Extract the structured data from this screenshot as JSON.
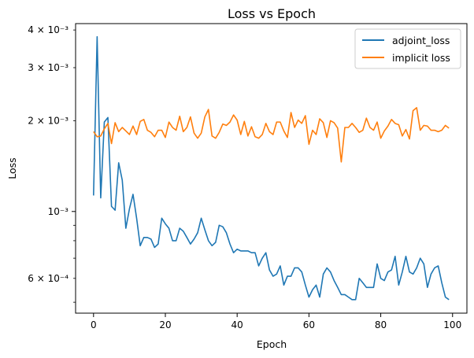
{
  "chart_data": {
    "type": "line",
    "title": "Loss vs Epoch",
    "xlabel": "Epoch",
    "ylabel": "Loss",
    "xlim": [
      -5,
      104
    ],
    "ylim": [
      0.00046,
      0.0042
    ],
    "yscale": "log",
    "grid": false,
    "legend_position": "top-right",
    "x_ticks": [
      0,
      20,
      40,
      60,
      80,
      100
    ],
    "x_tick_labels": [
      "0",
      "20",
      "40",
      "60",
      "80",
      "100"
    ],
    "y_major_ticks": [
      0.001
    ],
    "y_major_labels": [
      "10⁻³"
    ],
    "y_minor_ticks": [
      0.0005,
      0.0006,
      0.0007,
      0.0008,
      0.0009,
      0.002,
      0.003,
      0.004
    ],
    "y_minor_labels": [
      "",
      "6 × 10⁻⁴",
      "",
      "",
      "",
      "2 × 10⁻³",
      "3 × 10⁻³",
      "4 × 10⁻³"
    ],
    "x": [
      0,
      1,
      2,
      3,
      4,
      5,
      6,
      7,
      8,
      9,
      10,
      11,
      12,
      13,
      14,
      15,
      16,
      17,
      18,
      19,
      20,
      21,
      22,
      23,
      24,
      25,
      26,
      27,
      28,
      29,
      30,
      31,
      32,
      33,
      34,
      35,
      36,
      37,
      38,
      39,
      40,
      41,
      42,
      43,
      44,
      45,
      46,
      47,
      48,
      49,
      50,
      51,
      52,
      53,
      54,
      55,
      56,
      57,
      58,
      59,
      60,
      61,
      62,
      63,
      64,
      65,
      66,
      67,
      68,
      69,
      70,
      71,
      72,
      73,
      74,
      75,
      76,
      77,
      78,
      79,
      80,
      81,
      82,
      83,
      84,
      85,
      86,
      87,
      88,
      89,
      90,
      91,
      92,
      93,
      94,
      95,
      96,
      97,
      98,
      99
    ],
    "series": [
      {
        "name": "adjoint_loss",
        "color": "#1f77b4",
        "values": [
          0.00113,
          0.0038,
          0.00111,
          0.00198,
          0.00205,
          0.00104,
          0.00101,
          0.00145,
          0.00127,
          0.00088,
          0.00102,
          0.00114,
          0.00095,
          0.00077,
          0.00082,
          0.00082,
          0.00081,
          0.00076,
          0.00078,
          0.00095,
          0.00091,
          0.00088,
          0.0008,
          0.0008,
          0.00088,
          0.00086,
          0.00082,
          0.00078,
          0.00081,
          0.00085,
          0.00095,
          0.00087,
          0.0008,
          0.00077,
          0.00079,
          0.0009,
          0.00089,
          0.00085,
          0.00078,
          0.00073,
          0.00075,
          0.00074,
          0.00074,
          0.00074,
          0.00073,
          0.00073,
          0.00066,
          0.0007,
          0.00073,
          0.00064,
          0.00061,
          0.00062,
          0.00066,
          0.00057,
          0.00061,
          0.00061,
          0.00065,
          0.00065,
          0.00063,
          0.00057,
          0.00052,
          0.00055,
          0.00057,
          0.00052,
          0.00062,
          0.00065,
          0.00063,
          0.00059,
          0.00056,
          0.00053,
          0.00053,
          0.00052,
          0.00051,
          0.00051,
          0.0006,
          0.00058,
          0.00056,
          0.00056,
          0.00056,
          0.00067,
          0.0006,
          0.00059,
          0.00063,
          0.00064,
          0.00071,
          0.00057,
          0.00063,
          0.00071,
          0.00063,
          0.00062,
          0.00065,
          0.0007,
          0.00067,
          0.00056,
          0.00062,
          0.00065,
          0.00066,
          0.00058,
          0.00052,
          0.00051
        ]
      },
      {
        "name": "implicit loss",
        "color": "#ff7f0e",
        "values": [
          0.00184,
          0.00177,
          0.00178,
          0.00188,
          0.00196,
          0.00168,
          0.00197,
          0.00184,
          0.0019,
          0.00185,
          0.0018,
          0.00192,
          0.0018,
          0.00199,
          0.00202,
          0.00186,
          0.00183,
          0.00177,
          0.00186,
          0.00186,
          0.00176,
          0.00198,
          0.0019,
          0.00186,
          0.00207,
          0.00184,
          0.0019,
          0.00206,
          0.00182,
          0.00175,
          0.00182,
          0.00206,
          0.00218,
          0.00178,
          0.00175,
          0.00183,
          0.00195,
          0.00193,
          0.00198,
          0.00209,
          0.00201,
          0.0018,
          0.00199,
          0.00178,
          0.00191,
          0.00177,
          0.00175,
          0.0018,
          0.00196,
          0.00184,
          0.0018,
          0.00198,
          0.00198,
          0.00185,
          0.00176,
          0.00213,
          0.0019,
          0.00201,
          0.00196,
          0.00208,
          0.00167,
          0.00186,
          0.0018,
          0.00203,
          0.00197,
          0.00176,
          0.002,
          0.00197,
          0.00189,
          0.00146,
          0.0019,
          0.0019,
          0.00196,
          0.0019,
          0.00183,
          0.00186,
          0.00204,
          0.0019,
          0.00186,
          0.00198,
          0.00175,
          0.00185,
          0.00192,
          0.00202,
          0.00196,
          0.00194,
          0.00178,
          0.00187,
          0.00174,
          0.00216,
          0.00221,
          0.00186,
          0.00193,
          0.00192,
          0.00186,
          0.00186,
          0.00184,
          0.00186,
          0.00193,
          0.00189
        ]
      }
    ]
  }
}
